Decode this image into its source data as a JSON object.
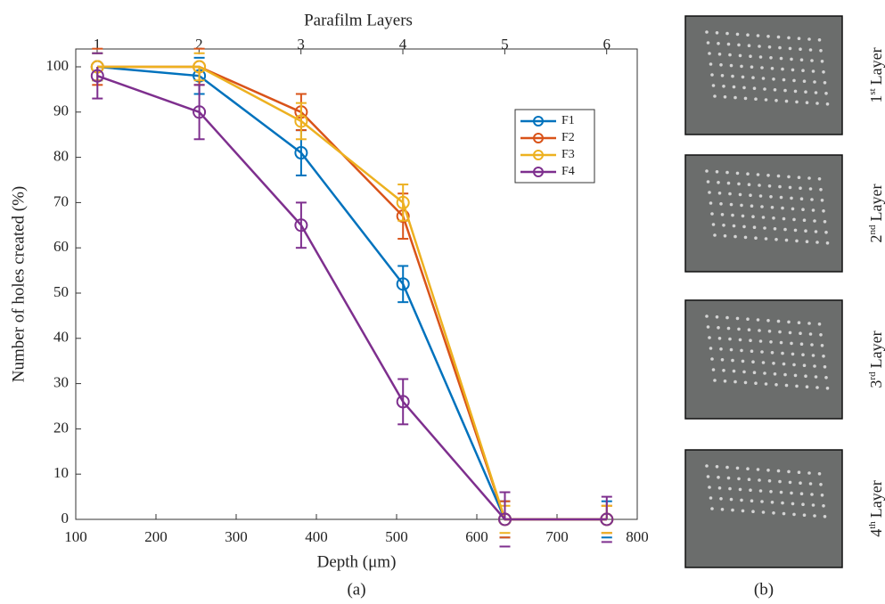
{
  "chart_data": {
    "type": "line",
    "xlabel": "Depth (μm)",
    "ylabel": "Number of holes created (%)",
    "x2label": "Parafilm Layers",
    "x": [
      127,
      254,
      381,
      508,
      635,
      762
    ],
    "series": [
      {
        "name": "F1",
        "color": "#0072bd",
        "values": [
          100,
          98,
          81,
          52,
          0,
          0
        ],
        "errors": [
          3,
          4,
          5,
          4,
          4,
          4
        ]
      },
      {
        "name": "F2",
        "color": "#d95319",
        "values": [
          100,
          100,
          90,
          67,
          0,
          0
        ],
        "errors": [
          4,
          4,
          4,
          5,
          4,
          3
        ]
      },
      {
        "name": "F3",
        "color": "#edb120",
        "values": [
          100,
          100,
          88,
          70,
          0,
          0
        ],
        "errors": [
          3,
          3,
          4,
          4,
          3,
          3
        ]
      },
      {
        "name": "F4",
        "color": "#7e2f8e",
        "values": [
          98,
          90,
          65,
          26,
          0,
          0
        ],
        "errors": [
          5,
          6,
          5,
          5,
          6,
          5
        ]
      }
    ],
    "xlim": [
      100,
      800
    ],
    "xticks": [
      100,
      200,
      300,
      400,
      500,
      600,
      700,
      800
    ],
    "ylim": [
      0,
      100
    ],
    "yticks": [
      0,
      10,
      20,
      30,
      40,
      50,
      60,
      70,
      80,
      90,
      100
    ],
    "x2lim": [
      0.79,
      6.3
    ],
    "x2ticks": [
      1,
      2,
      3,
      4,
      5,
      6
    ],
    "legend": "upper right",
    "panel_label": "(a)"
  },
  "images": {
    "panel_label": "(b)",
    "layers": [
      {
        "number": "1",
        "suffix": "st",
        "word": "Layer"
      },
      {
        "number": "2",
        "suffix": "nd",
        "word": "Layer"
      },
      {
        "number": "3",
        "suffix": "rd",
        "word": "Layer"
      },
      {
        "number": "4",
        "suffix": "th",
        "word": "Layer"
      }
    ]
  }
}
